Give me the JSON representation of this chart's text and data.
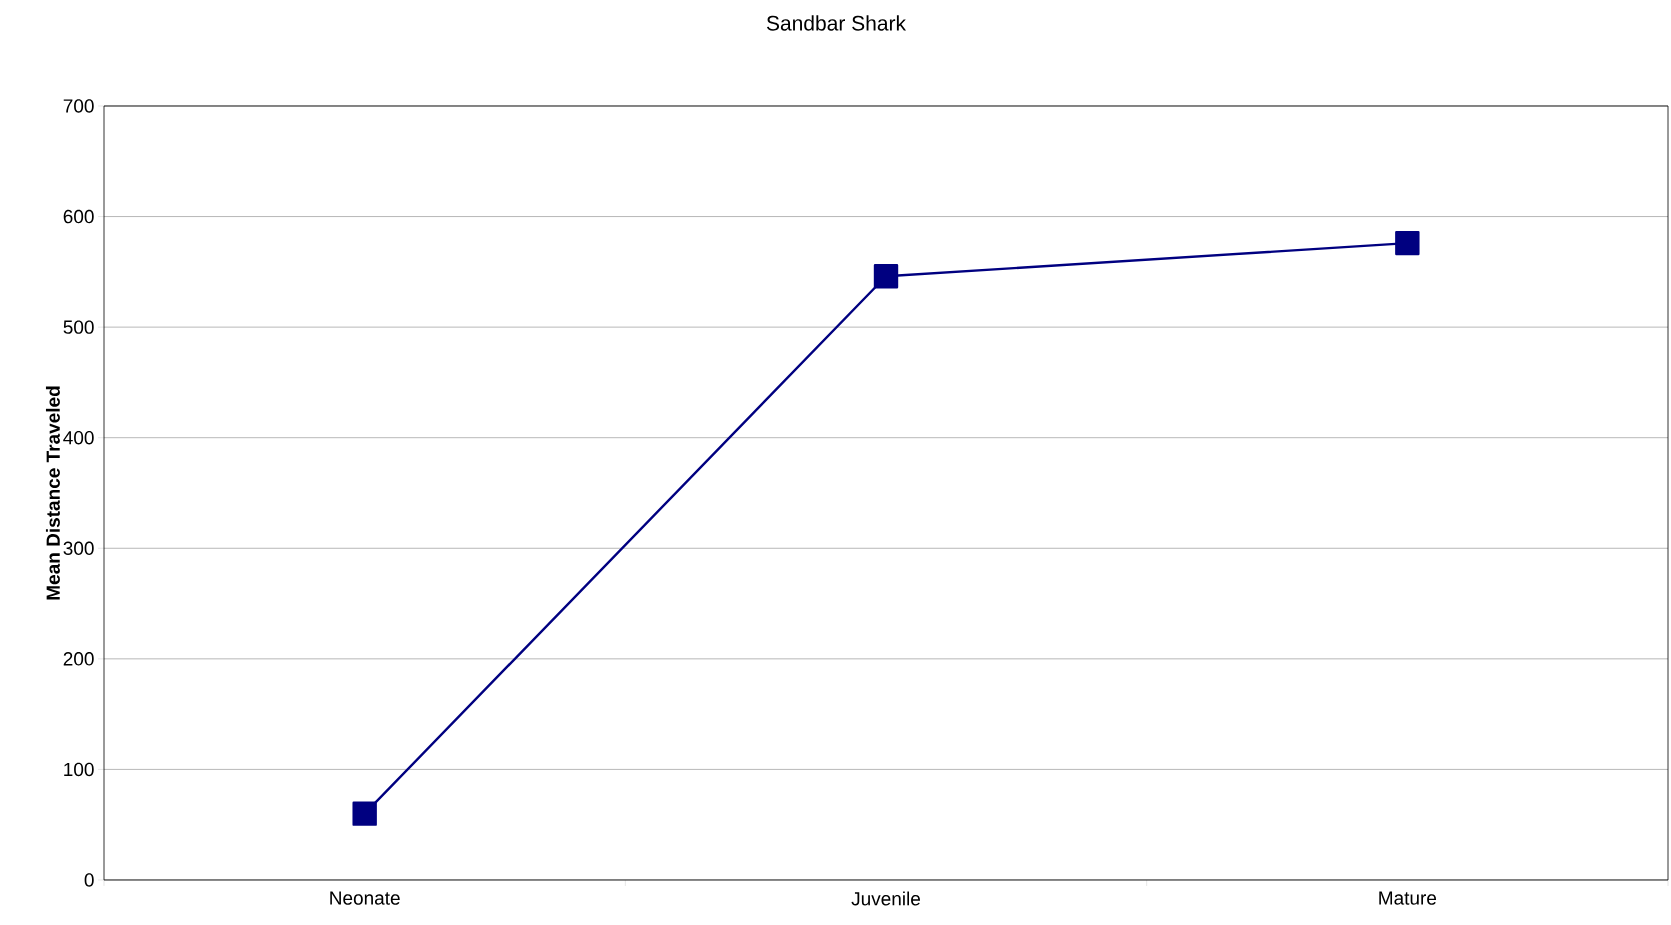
{
  "chart_data": {
    "type": "line",
    "title": "Sandbar Shark",
    "ylabel": "Mean Distance Traveled",
    "categories": [
      "Neonate",
      "Juvenile",
      "Mature"
    ],
    "series": [
      {
        "color": "#000080",
        "values": [
          60,
          546,
          576
        ]
      }
    ],
    "ylim": [
      0,
      700
    ],
    "yticks": [
      0,
      100,
      200,
      300,
      400,
      500,
      600,
      700
    ],
    "grid": "y",
    "marker": "square",
    "line_style": "solid"
  }
}
